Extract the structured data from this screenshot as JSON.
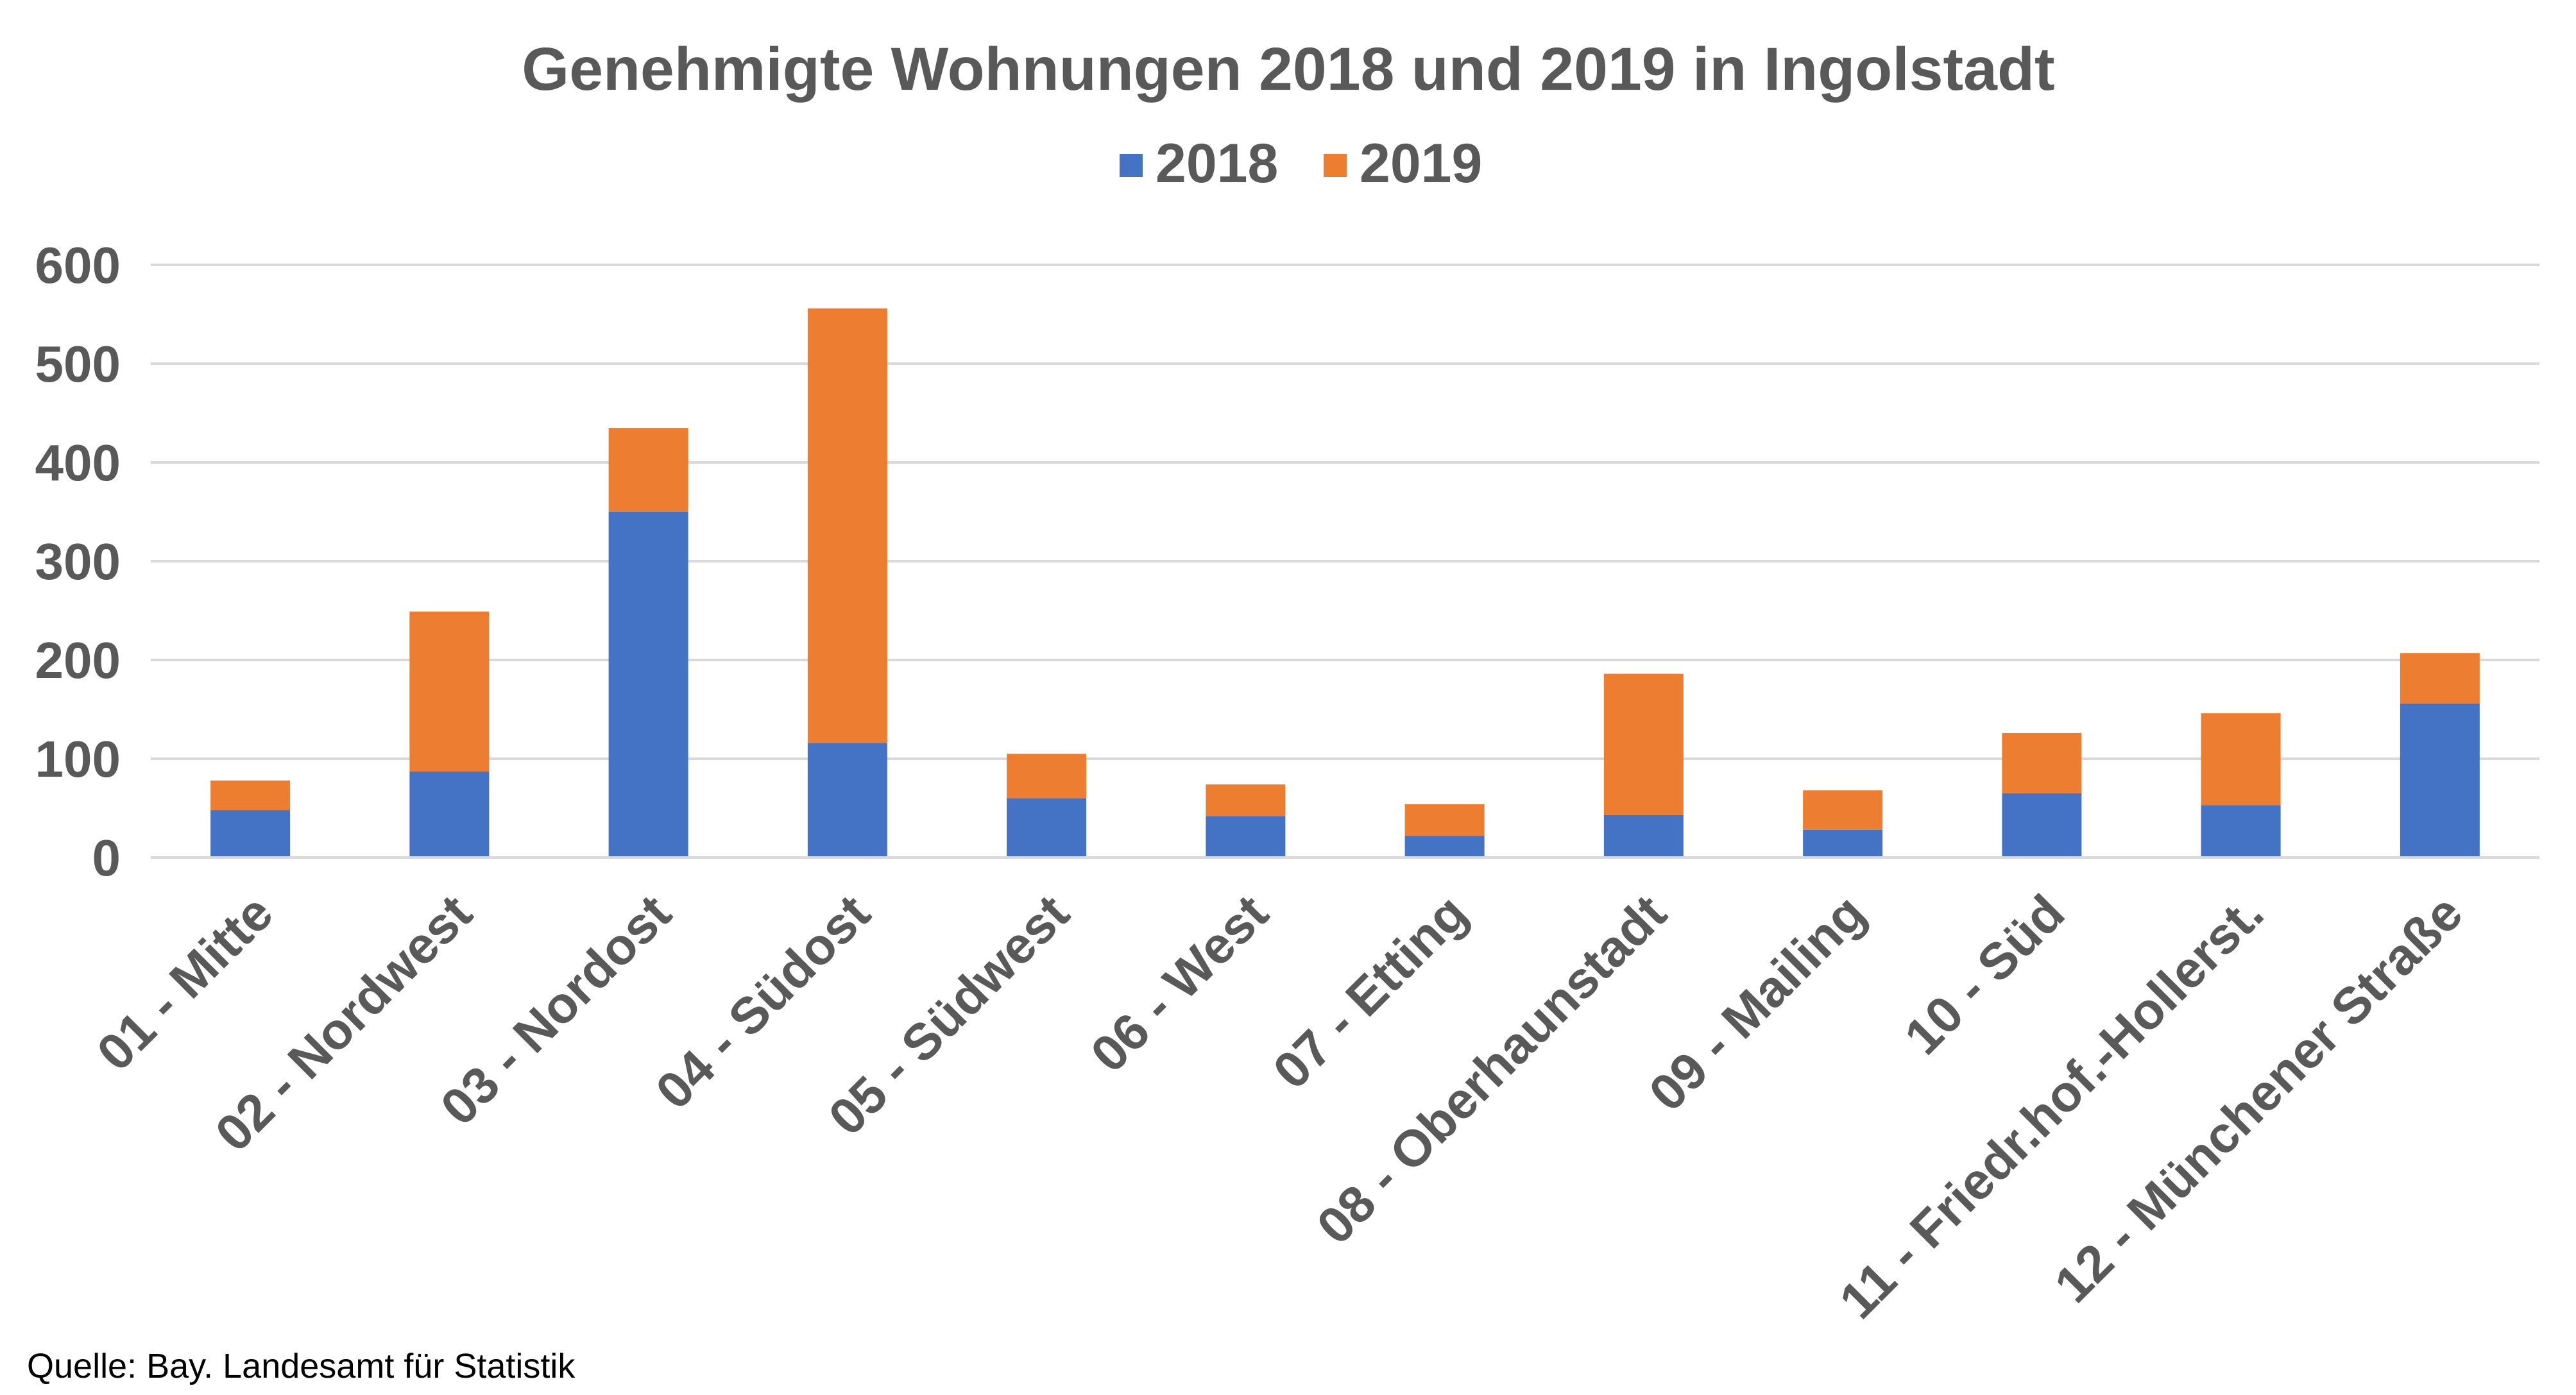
{
  "chart_data": {
    "type": "bar",
    "stacked": true,
    "title": "Genehmigte Wohnungen 2018 und 2019 in Ingolstadt",
    "xlabel": "",
    "ylabel": "",
    "ylim": [
      0,
      600
    ],
    "yticks": [
      0,
      100,
      200,
      300,
      400,
      500,
      600
    ],
    "grid": true,
    "legend_position": "top-center",
    "categories": [
      "01 - Mitte",
      "02 - Nordwest",
      "03 - Nordost",
      "04 - Südost",
      "05 - Südwest",
      "06 - West",
      "07 - Etting",
      "08 - Oberhaunstadt",
      "09 - Mailing",
      "10 - Süd",
      "11 - Friedr.hof.-Hollerst.",
      "12 - Münchener Straße"
    ],
    "series": [
      {
        "name": "2018",
        "color": "#4472c4",
        "values": [
          48,
          87,
          350,
          116,
          60,
          42,
          22,
          43,
          28,
          65,
          53,
          156
        ]
      },
      {
        "name": "2019",
        "color": "#ed7d31",
        "values": [
          30,
          162,
          85,
          440,
          45,
          32,
          32,
          143,
          40,
          61,
          93,
          51
        ]
      }
    ]
  },
  "source_note": "Quelle: Bay. Landesamt für Statistik"
}
